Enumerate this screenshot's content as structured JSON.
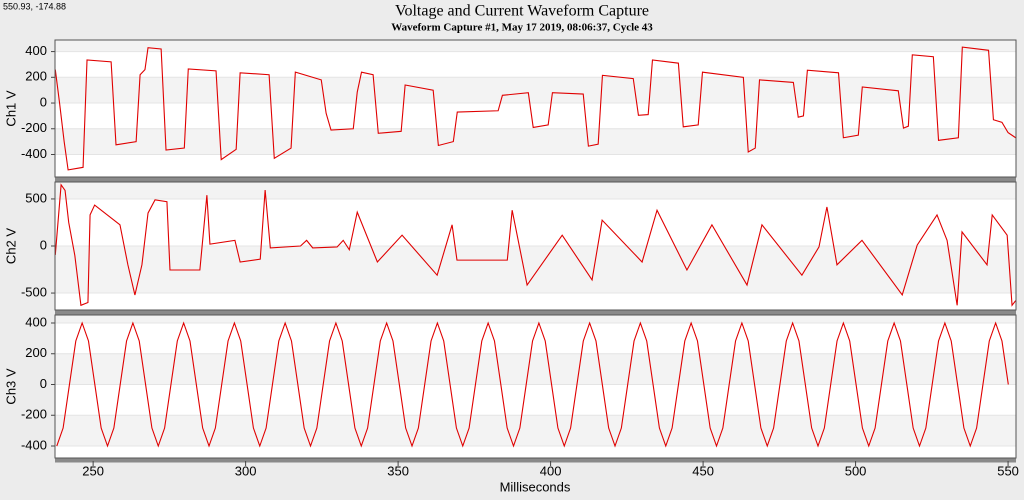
{
  "readout": "550.93, -174.88",
  "title": "Voltage and Current Waveform Capture",
  "subtitle": "Waveform Capture #1, May 17 2019, 08:06:37,  Cycle 43",
  "xlabel": "Milliseconds",
  "xlim": [
    237.5,
    552.6
  ],
  "xticks": [
    250,
    300,
    350,
    400,
    450,
    500,
    550
  ],
  "chart_data": [
    {
      "type": "line",
      "ylabel": "Ch1 V",
      "color": "#e00000",
      "grid": true,
      "ylim": [
        -575,
        490
      ],
      "yticks": [
        -400,
        -200,
        0,
        200,
        400
      ],
      "x": [
        237.6,
        239,
        240.5,
        241.8,
        246.7,
        248.0,
        255.9,
        257.5,
        264.1,
        265.4,
        267,
        268,
        272.3,
        273.9,
        279.9,
        281.2,
        290.3,
        292.0,
        296.9,
        298.2,
        307.7,
        309.4,
        314.9,
        316.3,
        324.8,
        326.4,
        328,
        335.3,
        336.6,
        338,
        341.8,
        343.5,
        351.0,
        352.3,
        361.5,
        363.2,
        368.1,
        369.4,
        382.8,
        384.2,
        392.7,
        394.3,
        399.2,
        400.6,
        410.7,
        412.4,
        415.6,
        417.0,
        427.1,
        428.8,
        432.0,
        433.4,
        441.9,
        443.5,
        448.4,
        449.8,
        463.2,
        464.8,
        467.1,
        468.5,
        479.6,
        481.2,
        482.9,
        484.2,
        494.4,
        496.0,
        500.9,
        502.2,
        514.0,
        515.7,
        517.3,
        518.6,
        525.5,
        527.2,
        533.7,
        535.0,
        543.6,
        545.2,
        548,
        550,
        552.5
      ],
      "values": [
        260,
        0,
        -300,
        -520,
        -500,
        335,
        320,
        -325,
        -300,
        220,
        260,
        430,
        420,
        -365,
        -350,
        265,
        250,
        -440,
        -360,
        235,
        220,
        -430,
        -350,
        240,
        180,
        -80,
        -210,
        -200,
        85,
        240,
        220,
        -235,
        -220,
        140,
        100,
        -330,
        -300,
        -70,
        -60,
        60,
        80,
        -190,
        -170,
        80,
        70,
        -335,
        -320,
        215,
        190,
        -95,
        -90,
        335,
        310,
        -185,
        -170,
        240,
        200,
        -380,
        -350,
        180,
        160,
        -110,
        -100,
        255,
        235,
        -270,
        -250,
        125,
        95,
        -195,
        -180,
        375,
        360,
        -290,
        -270,
        435,
        410,
        -130,
        -150,
        -230,
        -270
      ]
    },
    {
      "type": "line",
      "ylabel": "Ch2 V",
      "color": "#e00000",
      "grid": true,
      "ylim": [
        -680,
        680
      ],
      "yticks": [
        -500,
        0,
        500
      ],
      "x": [
        237.6,
        239.5,
        240.8,
        242,
        244,
        246,
        248.3,
        249,
        250.5,
        258.8,
        261.4,
        263.7,
        266,
        268,
        270.3,
        274.2,
        275.2,
        285,
        287.3,
        288.3,
        296.5,
        298.2,
        304.8,
        306.4,
        308.1,
        318,
        320,
        322,
        330,
        332,
        334,
        336.6,
        343.2,
        351.3,
        362.8,
        367.7,
        369.3,
        385.8,
        387.4,
        392.3,
        403.8,
        413.6,
        416.9,
        430,
        434.9,
        444.7,
        452.9,
        464.4,
        469.3,
        482.4,
        488,
        490.6,
        493.9,
        502.1,
        515.3,
        520.2,
        526.7,
        530,
        533.3,
        534.9,
        543.1,
        544.8,
        549.7,
        551.3,
        552.5
      ],
      "values": [
        -95,
        650,
        590,
        250,
        -100,
        -630,
        -600,
        330,
        435,
        225,
        -200,
        -520,
        -200,
        350,
        490,
        470,
        -255,
        -255,
        540,
        20,
        60,
        -170,
        -140,
        595,
        -20,
        0,
        60,
        -20,
        -10,
        60,
        -40,
        360,
        -170,
        115,
        -310,
        225,
        -150,
        -150,
        380,
        -415,
        115,
        -360,
        275,
        -170,
        380,
        -255,
        225,
        -415,
        225,
        -310,
        -10,
        415,
        -200,
        60,
        -520,
        10,
        330,
        60,
        -630,
        150,
        -200,
        330,
        115,
        -630,
        -580
      ]
    },
    {
      "type": "line",
      "ylabel": "Ch3 V",
      "color": "#e00000",
      "grid": true,
      "ylim": [
        -478,
        452
      ],
      "yticks": [
        -400,
        -200,
        0,
        200,
        400
      ],
      "x": [
        238.08,
        240.16,
        242.24,
        244.32,
        246.4,
        248.48,
        250.56,
        252.64,
        254.72,
        256.8,
        258.88,
        260.96,
        263.04,
        265.12,
        267.2,
        269.28,
        271.36,
        273.44,
        275.52,
        277.6,
        279.68,
        281.76,
        283.84,
        285.92,
        288.0,
        290.08,
        292.16,
        294.24,
        296.32,
        298.4,
        300.48,
        302.56,
        304.64,
        306.72,
        308.8,
        310.88,
        312.96,
        315.04,
        317.12,
        319.2,
        321.28,
        323.36,
        325.44,
        327.52,
        329.6,
        331.68,
        333.76,
        335.84,
        337.92,
        340.0,
        342.08,
        344.16,
        346.24,
        348.32,
        350.4,
        352.48,
        354.56,
        356.64,
        358.72,
        360.8,
        362.88,
        364.96,
        367.04,
        369.12,
        371.2,
        373.28,
        375.36,
        377.44,
        379.52,
        381.6,
        383.68,
        385.76,
        387.84,
        389.92,
        392.0,
        394.08,
        396.16,
        398.24,
        400.32,
        402.4,
        404.48,
        406.56,
        408.64,
        410.72,
        412.8,
        414.88,
        416.96,
        419.04,
        421.12,
        423.2,
        425.28,
        427.36,
        429.44,
        431.52,
        433.6,
        435.68,
        437.76,
        439.84,
        441.92,
        444.0,
        446.08,
        448.16,
        450.24,
        452.32,
        454.4,
        456.48,
        458.56,
        460.64,
        462.72,
        464.8,
        466.88,
        468.96,
        471.04,
        473.12,
        475.2,
        477.28,
        479.36,
        481.44,
        483.52,
        485.6,
        487.68,
        489.76,
        491.84,
        493.92,
        496.0,
        498.08,
        500.16,
        502.24,
        504.32,
        506.4,
        508.48,
        510.56,
        512.64,
        514.72,
        516.8,
        518.88,
        520.96,
        523.04,
        525.12,
        527.2,
        529.28,
        531.36,
        533.44,
        535.52,
        537.6,
        539.68,
        541.76,
        543.84,
        545.92,
        548.0,
        550.08
      ],
      "values": [
        -400,
        -283,
        0,
        283,
        400,
        283,
        0,
        -283,
        -400,
        -283,
        0,
        283,
        400,
        283,
        0,
        -283,
        -400,
        -283,
        0,
        283,
        400,
        283,
        0,
        -283,
        -400,
        -283,
        0,
        283,
        400,
        283,
        0,
        -283,
        -400,
        -283,
        0,
        283,
        400,
        283,
        0,
        -283,
        -400,
        -283,
        0,
        283,
        400,
        283,
        0,
        -283,
        -400,
        -283,
        0,
        283,
        400,
        283,
        0,
        -283,
        -400,
        -283,
        0,
        283,
        400,
        283,
        0,
        -283,
        -400,
        -283,
        0,
        283,
        400,
        283,
        0,
        -283,
        -400,
        -283,
        0,
        283,
        400,
        283,
        0,
        -283,
        -400,
        -283,
        0,
        283,
        400,
        283,
        0,
        -283,
        -400,
        -283,
        0,
        283,
        400,
        283,
        0,
        -283,
        -400,
        -283,
        0,
        283,
        400,
        283,
        0,
        -283,
        -400,
        -283,
        0,
        283,
        400,
        283,
        0,
        -283,
        -400,
        -283,
        0,
        283,
        400,
        283,
        0,
        -283,
        -400,
        -283,
        0,
        283,
        400,
        283,
        0,
        -283,
        -400,
        -283,
        0,
        283,
        400,
        283,
        0,
        -283,
        -400,
        -283,
        0,
        283,
        400,
        283,
        0,
        -283,
        -400,
        -283,
        0,
        283,
        400,
        283,
        0
      ]
    }
  ]
}
